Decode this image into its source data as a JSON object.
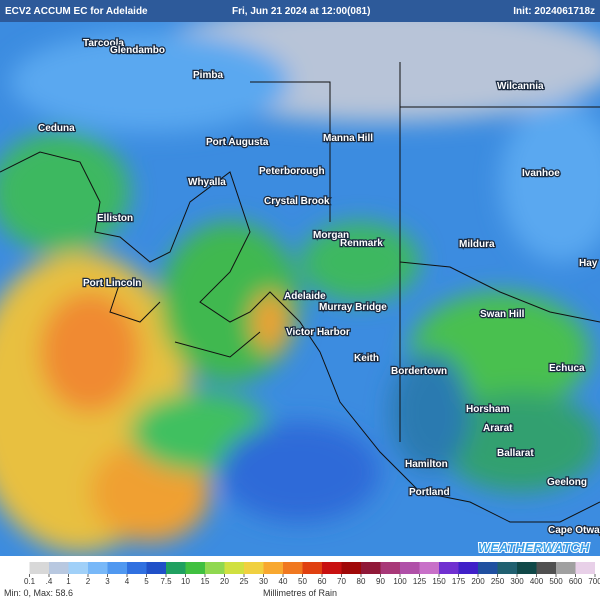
{
  "header": {
    "title": "ECV2 ACCUM EC for Adelaide",
    "valid": "Fri, Jun 21 2024 at 12:00(081)",
    "init": "Init: 2024061718z"
  },
  "places": [
    "Tarcoola",
    "Glendambo",
    "Pimba",
    "Ceduna",
    "Port Augusta",
    "Manna Hill",
    "Wilcannia",
    "Peterborough",
    "Whyalla",
    "Crystal Brook",
    "Ivanhoe",
    "Elliston",
    "Morgan",
    "Renmark",
    "Mildura",
    "Hay",
    "Port Lincoln",
    "Adelaide",
    "Murray Bridge",
    "Swan Hill",
    "Victor Harbor",
    "Keith",
    "Bordertown",
    "Echuca",
    "Horsham",
    "Ararat",
    "Hamilton",
    "Ballarat",
    "Portland",
    "Geelong",
    "Cape Otway"
  ],
  "logo": "WEATHERWATCH",
  "legend": {
    "ticks": [
      0.1,
      {
        "value": 0.4,
        "label": ".4"
      },
      1,
      2,
      3,
      4,
      5,
      7.5,
      10,
      15,
      20,
      25,
      30,
      40,
      50,
      60,
      70,
      80,
      90,
      100,
      125,
      150,
      175,
      200,
      250,
      300,
      400,
      500,
      600,
      700
    ],
    "colors": [
      "#ffffff",
      "#d8d8d8",
      "#b8c8e0",
      "#a0d0f8",
      "#78b8f8",
      "#5098f0",
      "#3070e0",
      "#2050c8",
      "#20a060",
      "#40c040",
      "#90d850",
      "#d0e040",
      "#f0d040",
      "#f8a830",
      "#f07820",
      "#e04010",
      "#c81010",
      "#a00808",
      "#901838",
      "#a83878",
      "#b050a8",
      "#c870c8",
      "#7030d0",
      "#4020c8",
      "#2050a0",
      "#206070",
      "#104848",
      "#505050",
      "#a0a0a0",
      "#e8d0e8"
    ],
    "stats": "Min: 0, Max: 58.6",
    "unit": "Millimetres of Rain"
  }
}
